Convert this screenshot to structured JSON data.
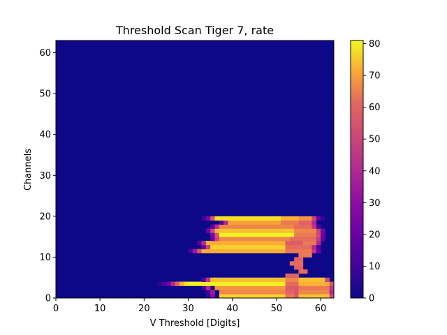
{
  "chart_data": {
    "type": "heatmap",
    "title": "Threshold Scan Tiger 7, rate",
    "xlabel": "V Threshold [Digits]",
    "ylabel": "Channels",
    "xlim": [
      0,
      63
    ],
    "ylim": [
      0,
      63
    ],
    "x_ticks": [
      0,
      10,
      20,
      30,
      40,
      50,
      60
    ],
    "y_ticks": [
      0,
      10,
      20,
      30,
      40,
      50,
      60
    ],
    "colorbar": {
      "range": [
        0,
        81
      ],
      "ticks": [
        0,
        10,
        20,
        30,
        40,
        50,
        60,
        70,
        80
      ],
      "colormap": "plasma"
    },
    "background_value": 0,
    "channel_rows": [
      {
        "channel": 0,
        "start": 34,
        "ramp": [
          8,
          30
        ],
        "plateau": [
          [
            37,
            52,
            76
          ],
          [
            52,
            54,
            64
          ],
          [
            54,
            55,
            58
          ],
          [
            55,
            62,
            74
          ]
        ],
        "tail": [
          50
        ]
      },
      {
        "channel": 1,
        "start": 34,
        "ramp": [
          10,
          35
        ],
        "plateau": [
          [
            37,
            52,
            66
          ],
          [
            52,
            54,
            60
          ],
          [
            54,
            55,
            56
          ],
          [
            55,
            62,
            66
          ]
        ],
        "tail": [
          40
        ]
      },
      {
        "channel": 2,
        "start": 33,
        "ramp": [
          12,
          40
        ],
        "plateau": [
          [
            36,
            52,
            68
          ],
          [
            52,
            54,
            58
          ],
          [
            54,
            55,
            56
          ],
          [
            55,
            62,
            64
          ]
        ],
        "tail": [
          45
        ]
      },
      {
        "channel": 3,
        "start": 23,
        "ramp": [
          5,
          12,
          22,
          40,
          60,
          72,
          78
        ],
        "plateau": [
          [
            30,
            52,
            80
          ],
          [
            52,
            55,
            62
          ],
          [
            55,
            62,
            72
          ]
        ],
        "tail": [
          55
        ]
      },
      {
        "channel": 4,
        "start": 33,
        "ramp": [
          15,
          45
        ],
        "plateau": [
          [
            35,
            52,
            74
          ],
          [
            52,
            55,
            66
          ],
          [
            55,
            61,
            74
          ]
        ],
        "tail": [
          50
        ]
      },
      {
        "channel": 5,
        "start": 52,
        "ramp": [],
        "plateau": [
          [
            52,
            55,
            60
          ]
        ],
        "tail": []
      },
      {
        "channel": 6,
        "start": 55,
        "ramp": [],
        "plateau": [
          [
            55,
            57,
            62
          ]
        ],
        "tail": []
      },
      {
        "channel": 7,
        "start": 54,
        "ramp": [],
        "plateau": [
          [
            54,
            56,
            60
          ]
        ],
        "tail": []
      },
      {
        "channel": 8,
        "start": 53,
        "ramp": [],
        "plateau": [
          [
            53,
            56,
            62
          ]
        ],
        "tail": []
      },
      {
        "channel": 9,
        "start": 54,
        "ramp": [],
        "plateau": [
          [
            54,
            56,
            60
          ]
        ],
        "tail": []
      },
      {
        "channel": 10,
        "start": 55,
        "ramp": [],
        "plateau": [
          [
            55,
            58,
            64
          ]
        ],
        "tail": []
      },
      {
        "channel": 11,
        "start": 30,
        "ramp": [
          12,
          35,
          55
        ],
        "plateau": [
          [
            33,
            52,
            72
          ],
          [
            52,
            58,
            64
          ]
        ],
        "tail": [
          45,
          20
        ]
      },
      {
        "channel": 12,
        "start": 33,
        "ramp": [
          20,
          48
        ],
        "plateau": [
          [
            35,
            52,
            76
          ],
          [
            52,
            58,
            62
          ]
        ],
        "tail": [
          40,
          15
        ]
      },
      {
        "channel": 13,
        "start": 32,
        "ramp": [
          15,
          40
        ],
        "plateau": [
          [
            34,
            52,
            72
          ],
          [
            52,
            56,
            58
          ],
          [
            56,
            59,
            64
          ]
        ],
        "tail": [
          40
        ]
      },
      {
        "channel": 14,
        "start": 35,
        "ramp": [
          20,
          50
        ],
        "plateau": [
          [
            37,
            53,
            66
          ],
          [
            53,
            59,
            62
          ]
        ],
        "tail": [
          48,
          20
        ]
      },
      {
        "channel": 15,
        "start": 35,
        "ramp": [
          25,
          55
        ],
        "plateau": [
          [
            37,
            54,
            80
          ],
          [
            54,
            59,
            64
          ]
        ],
        "tail": [
          52,
          22
        ]
      },
      {
        "channel": 16,
        "start": 34,
        "ramp": [
          20,
          50
        ],
        "plateau": [
          [
            36,
            54,
            74
          ],
          [
            54,
            59,
            66
          ]
        ],
        "tail": [
          50,
          22
        ]
      },
      {
        "channel": 17,
        "start": 35,
        "ramp": [
          18,
          42
        ],
        "plateau": [
          [
            37,
            54,
            66
          ],
          [
            54,
            58,
            62
          ]
        ],
        "tail": [
          45,
          15
        ]
      },
      {
        "channel": 18,
        "start": 37,
        "ramp": [
          15,
          40
        ],
        "plateau": [
          [
            39,
            51,
            70
          ],
          [
            51,
            55,
            64
          ],
          [
            55,
            58,
            60
          ]
        ],
        "tail": [
          40
        ]
      },
      {
        "channel": 19,
        "start": 33,
        "ramp": [
          10,
          25,
          55
        ],
        "plateau": [
          [
            36,
            51,
            78
          ],
          [
            51,
            55,
            72
          ],
          [
            55,
            58,
            68
          ]
        ],
        "tail": [
          50,
          20,
          8
        ]
      }
    ]
  }
}
